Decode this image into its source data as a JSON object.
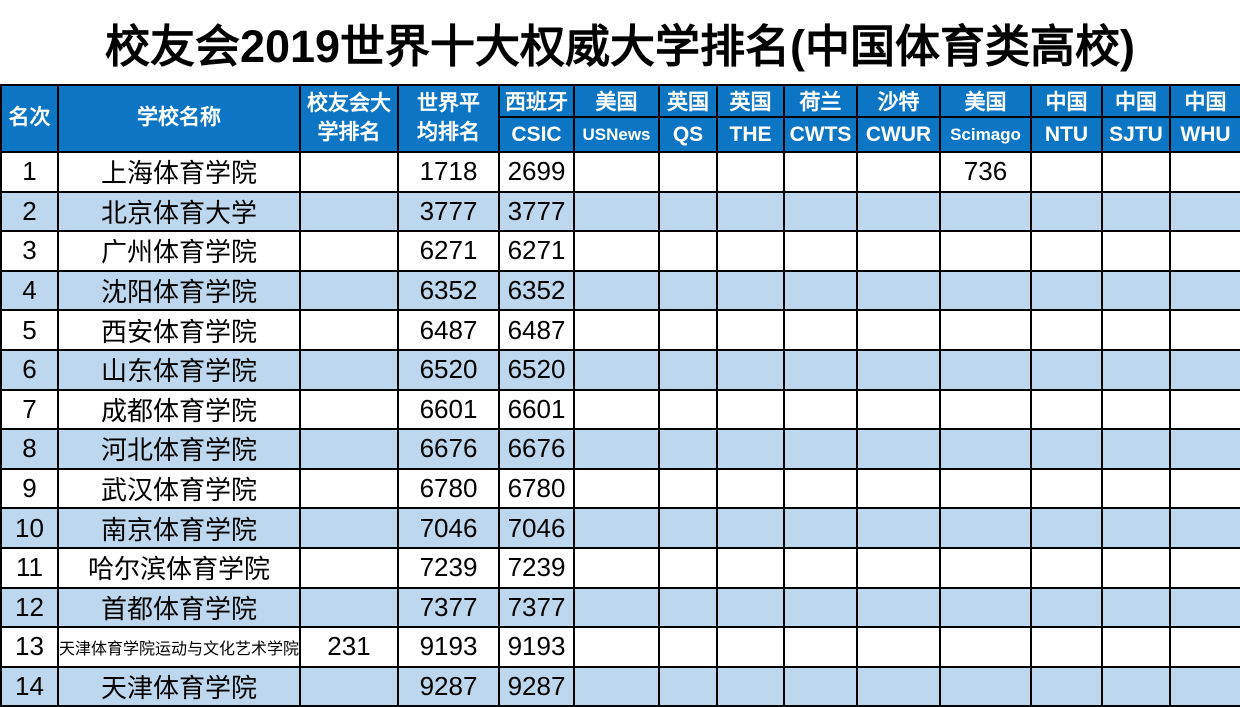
{
  "title": "校友会2019世界十大权威大学排名(中国体育类高校)",
  "colors": {
    "header_bg": "#0d76c4",
    "header_text": "#ffffff",
    "alt_row_bg": "#bdd7ee",
    "border": "#000000"
  },
  "table": {
    "merged_headers": {
      "rank": "名次",
      "school": "学校名称",
      "xyh_rank": "校友会大学排名",
      "world_avg": "世界平均排名"
    },
    "ranking_headers": [
      {
        "country": "西班牙",
        "org": "CSIC"
      },
      {
        "country": "美国",
        "org": "USNews"
      },
      {
        "country": "英国",
        "org": "QS"
      },
      {
        "country": "英国",
        "org": "THE"
      },
      {
        "country": "荷兰",
        "org": "CWTS"
      },
      {
        "country": "沙特",
        "org": "CWUR"
      },
      {
        "country": "美国",
        "org": "Scimago"
      },
      {
        "country": "中国",
        "org": "NTU"
      },
      {
        "country": "中国",
        "org": "SJTU"
      },
      {
        "country": "中国",
        "org": "WHU"
      }
    ],
    "column_keys": [
      "rank",
      "school",
      "xyh-rank",
      "world-avg",
      "csic",
      "usnews",
      "qs",
      "the",
      "cwts",
      "cwur",
      "scimago",
      "ntu",
      "sjtu",
      "whu"
    ],
    "rows": [
      {
        "school_small": false,
        "cells": [
          "1",
          "上海体育学院",
          "",
          "1718",
          "2699",
          "",
          "",
          "",
          "",
          "",
          "736",
          "",
          "",
          ""
        ]
      },
      {
        "school_small": false,
        "cells": [
          "2",
          "北京体育大学",
          "",
          "3777",
          "3777",
          "",
          "",
          "",
          "",
          "",
          "",
          "",
          "",
          ""
        ]
      },
      {
        "school_small": false,
        "cells": [
          "3",
          "广州体育学院",
          "",
          "6271",
          "6271",
          "",
          "",
          "",
          "",
          "",
          "",
          "",
          "",
          ""
        ]
      },
      {
        "school_small": false,
        "cells": [
          "4",
          "沈阳体育学院",
          "",
          "6352",
          "6352",
          "",
          "",
          "",
          "",
          "",
          "",
          "",
          "",
          ""
        ]
      },
      {
        "school_small": false,
        "cells": [
          "5",
          "西安体育学院",
          "",
          "6487",
          "6487",
          "",
          "",
          "",
          "",
          "",
          "",
          "",
          "",
          ""
        ]
      },
      {
        "school_small": false,
        "cells": [
          "6",
          "山东体育学院",
          "",
          "6520",
          "6520",
          "",
          "",
          "",
          "",
          "",
          "",
          "",
          "",
          ""
        ]
      },
      {
        "school_small": false,
        "cells": [
          "7",
          "成都体育学院",
          "",
          "6601",
          "6601",
          "",
          "",
          "",
          "",
          "",
          "",
          "",
          "",
          ""
        ]
      },
      {
        "school_small": false,
        "cells": [
          "8",
          "河北体育学院",
          "",
          "6676",
          "6676",
          "",
          "",
          "",
          "",
          "",
          "",
          "",
          "",
          ""
        ]
      },
      {
        "school_small": false,
        "cells": [
          "9",
          "武汉体育学院",
          "",
          "6780",
          "6780",
          "",
          "",
          "",
          "",
          "",
          "",
          "",
          "",
          ""
        ]
      },
      {
        "school_small": false,
        "cells": [
          "10",
          "南京体育学院",
          "",
          "7046",
          "7046",
          "",
          "",
          "",
          "",
          "",
          "",
          "",
          "",
          ""
        ]
      },
      {
        "school_small": false,
        "cells": [
          "11",
          "哈尔滨体育学院",
          "",
          "7239",
          "7239",
          "",
          "",
          "",
          "",
          "",
          "",
          "",
          "",
          ""
        ]
      },
      {
        "school_small": false,
        "cells": [
          "12",
          "首都体育学院",
          "",
          "7377",
          "7377",
          "",
          "",
          "",
          "",
          "",
          "",
          "",
          "",
          ""
        ]
      },
      {
        "school_small": true,
        "cells": [
          "13",
          "天津体育学院运动与文化艺术学院",
          "231",
          "9193",
          "9193",
          "",
          "",
          "",
          "",
          "",
          "",
          "",
          "",
          ""
        ]
      },
      {
        "school_small": false,
        "cells": [
          "14",
          "天津体育学院",
          "",
          "9287",
          "9287",
          "",
          "",
          "",
          "",
          "",
          "",
          "",
          "",
          ""
        ]
      }
    ]
  }
}
